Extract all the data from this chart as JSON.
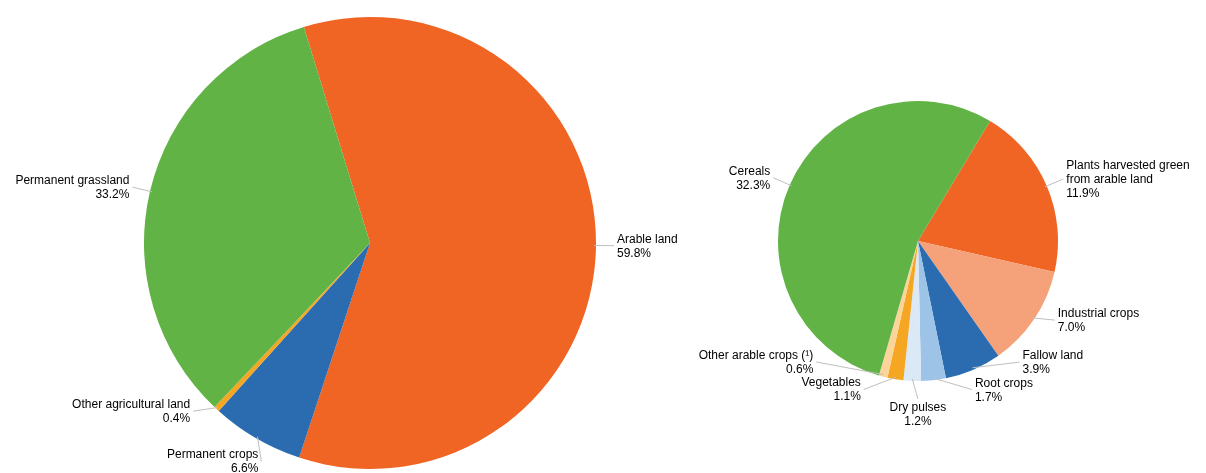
{
  "chart_data": [
    {
      "type": "pie",
      "categories": [
        "Arable land",
        "Permanent crops",
        "Other agricultural land",
        "Permanent grassland"
      ],
      "values": [
        59.8,
        6.6,
        0.4,
        33.2
      ],
      "colors": [
        "#f06424",
        "#2b6cb0",
        "#f5a623",
        "#62b345"
      ],
      "value_labels": [
        "59.8%",
        "6.6%",
        "0.4%",
        "33.2%"
      ]
    },
    {
      "type": "pie",
      "categories": [
        "Plants harvested green from arable land",
        "Industrial crops",
        "Fallow land",
        "Root crops",
        "Dry pulses",
        "Vegetables",
        "Other arable crops (¹)",
        "Cereals"
      ],
      "values": [
        11.9,
        7.0,
        3.9,
        1.7,
        1.2,
        1.1,
        0.6,
        32.3
      ],
      "colors": [
        "#f06424",
        "#f5a27a",
        "#2b6cb0",
        "#9dc3e6",
        "#dbe8f5",
        "#f5a623",
        "#fbd49a",
        "#62b345"
      ],
      "value_labels": [
        "11.9%",
        "7.0%",
        "3.9%",
        "1.7%",
        "1.2%",
        "1.1%",
        "0.6%",
        "32.3%"
      ]
    }
  ]
}
